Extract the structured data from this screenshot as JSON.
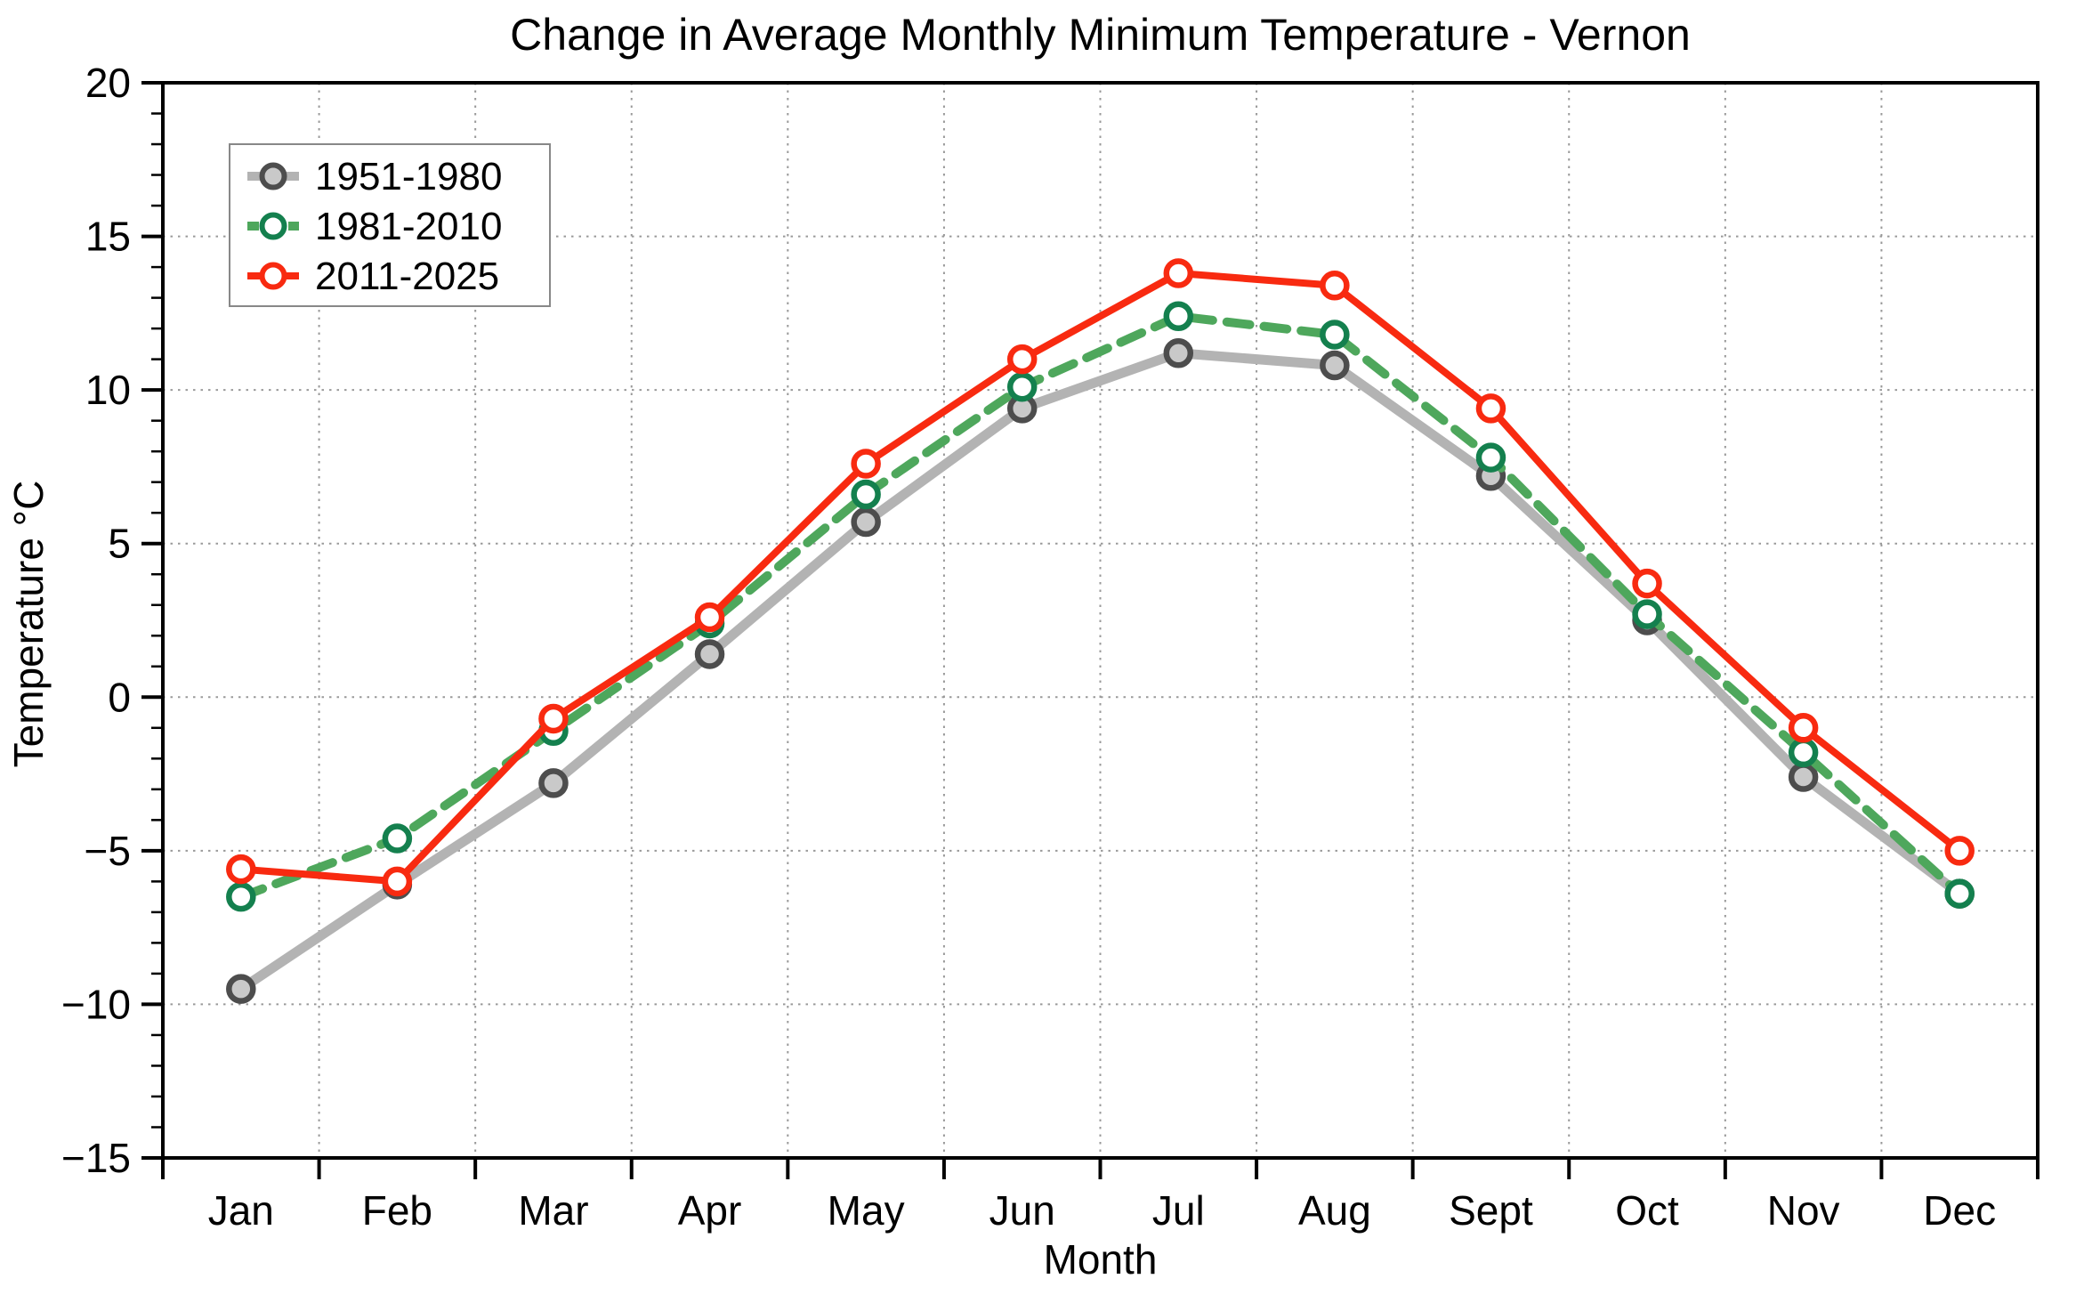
{
  "title": "Change in Average Monthly Minimum Temperature - Vernon",
  "chart_data": {
    "type": "line",
    "title": "Change in Average Monthly Minimum Temperature - Vernon",
    "xlabel": "Month",
    "ylabel": "Temperature °C",
    "categories": [
      "Jan",
      "Feb",
      "Mar",
      "Apr",
      "May",
      "Jun",
      "Jul",
      "Aug",
      "Sept",
      "Oct",
      "Nov",
      "Dec"
    ],
    "ylim": [
      -15,
      20
    ],
    "yticks": [
      20,
      15,
      10,
      5,
      0,
      -5,
      -10,
      -15
    ],
    "ytick_minor_step": 1,
    "grid": "dotted",
    "grid_color": "#999999",
    "legend_position": "upper-left",
    "series": [
      {
        "name": "1951-1980",
        "line_color": "#b3b3b3",
        "marker_edge": "#4d4d4d",
        "marker_face": "#c9c9c9",
        "style": "solid",
        "line_width": 11,
        "values": [
          -9.5,
          -6.1,
          -2.8,
          1.4,
          5.7,
          9.4,
          11.2,
          10.8,
          7.2,
          2.5,
          -2.6,
          -6.4
        ]
      },
      {
        "name": "1981-2010",
        "line_color": "#4ea75c",
        "marker_edge": "#14804e",
        "marker_face": "#ffffff",
        "style": "dashed",
        "line_width": 10,
        "values": [
          -6.5,
          -4.6,
          -1.1,
          2.4,
          6.6,
          10.1,
          12.4,
          11.8,
          7.8,
          2.7,
          -1.8,
          -6.4
        ]
      },
      {
        "name": "2011-2025",
        "line_color": "#f82a10",
        "marker_edge": "#f82a10",
        "marker_face": "#ffffff",
        "style": "solid",
        "line_width": 8,
        "values": [
          -5.6,
          -6.0,
          -0.7,
          2.6,
          7.6,
          11.0,
          13.8,
          13.4,
          9.4,
          3.7,
          -1.0,
          -5.0
        ]
      }
    ]
  }
}
